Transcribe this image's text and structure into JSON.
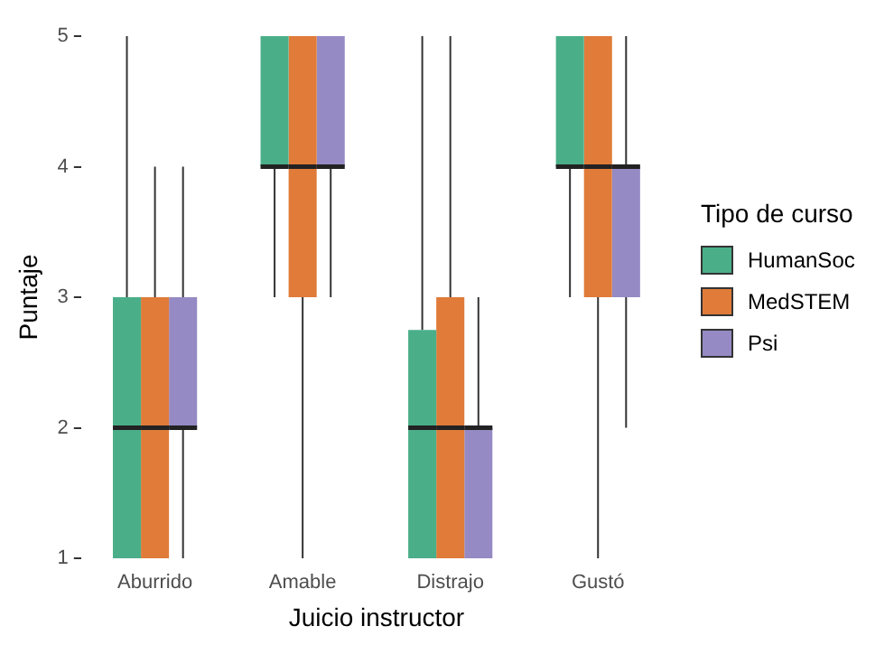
{
  "chart_data": {
    "type": "box",
    "xlabel": "Juicio instructor",
    "ylabel": "Puntaje",
    "legend_title": "Tipo de curso",
    "legend": "right",
    "grid": false,
    "categories": [
      "Aburrido",
      "Amable",
      "Distrajo",
      "Gustó"
    ],
    "ylim": [
      1,
      5
    ],
    "yticks": [
      1,
      2,
      3,
      4,
      5
    ],
    "series": [
      {
        "name": "HumanSoc",
        "color": "#4aaf89",
        "boxes": [
          {
            "low": 1,
            "q1": 1,
            "median": 2,
            "q3": 3,
            "high": 5
          },
          {
            "low": 3,
            "q1": 4,
            "median": 4,
            "q3": 5,
            "high": 5
          },
          {
            "low": 1,
            "q1": 1,
            "median": 2,
            "q3": 2.75,
            "high": 5
          },
          {
            "low": 3,
            "q1": 4,
            "median": 4,
            "q3": 5,
            "high": 5
          }
        ]
      },
      {
        "name": "MedSTEM",
        "color": "#e07b39",
        "boxes": [
          {
            "low": 1,
            "q1": 1,
            "median": 2,
            "q3": 3,
            "high": 4
          },
          {
            "low": 1,
            "q1": 3,
            "median": 4,
            "q3": 5,
            "high": 5
          },
          {
            "low": 1,
            "q1": 1,
            "median": 2,
            "q3": 3,
            "high": 5
          },
          {
            "low": 1,
            "q1": 3,
            "median": 4,
            "q3": 5,
            "high": 5
          }
        ]
      },
      {
        "name": "Psi",
        "color": "#958ac3",
        "boxes": [
          {
            "low": 1,
            "q1": 2,
            "median": 2,
            "q3": 3,
            "high": 4
          },
          {
            "low": 3,
            "q1": 4,
            "median": 4,
            "q3": 5,
            "high": 5
          },
          {
            "low": 1,
            "q1": 1,
            "median": 2,
            "q3": 2,
            "high": 3
          },
          {
            "low": 2,
            "q1": 3,
            "median": 4,
            "q3": 4,
            "high": 5
          }
        ]
      }
    ]
  }
}
